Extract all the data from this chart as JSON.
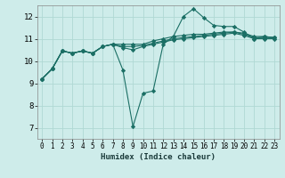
{
  "title": "",
  "xlabel": "Humidex (Indice chaleur)",
  "ylabel": "",
  "bg_color": "#ceecea",
  "grid_color": "#b0d8d4",
  "line_color": "#1a6e64",
  "xlim": [
    -0.5,
    23.5
  ],
  "ylim": [
    6.5,
    12.5
  ],
  "yticks": [
    7,
    8,
    9,
    10,
    11,
    12
  ],
  "xticks": [
    0,
    1,
    2,
    3,
    4,
    5,
    6,
    7,
    8,
    9,
    10,
    11,
    12,
    13,
    14,
    15,
    16,
    17,
    18,
    19,
    20,
    21,
    22,
    23
  ],
  "series": [
    {
      "x": [
        0,
        1,
        2,
        3,
        4,
        5,
        6,
        7,
        8,
        9,
        10,
        11,
        12,
        13,
        14,
        15,
        16,
        17,
        18,
        19,
        20,
        21,
        22,
        23
      ],
      "y": [
        9.2,
        9.65,
        10.45,
        10.35,
        10.45,
        10.35,
        10.65,
        10.75,
        9.6,
        7.05,
        8.55,
        8.65,
        10.75,
        11.1,
        12.0,
        12.35,
        11.95,
        11.6,
        11.55,
        11.55,
        11.3,
        11.0,
        11.1,
        11.05
      ]
    },
    {
      "x": [
        0,
        1,
        2,
        3,
        4,
        5,
        6,
        7,
        8,
        9,
        10,
        11,
        12,
        13,
        14,
        15,
        16,
        17,
        18,
        19,
        20,
        21,
        22,
        23
      ],
      "y": [
        9.2,
        9.65,
        10.45,
        10.35,
        10.45,
        10.35,
        10.65,
        10.75,
        10.75,
        10.75,
        10.75,
        10.9,
        11.0,
        11.1,
        11.15,
        11.2,
        11.2,
        11.25,
        11.3,
        11.3,
        11.25,
        11.1,
        11.1,
        11.05
      ]
    },
    {
      "x": [
        0,
        1,
        2,
        3,
        4,
        5,
        6,
        7,
        8,
        9,
        10,
        11,
        12,
        13,
        14,
        15,
        16,
        17,
        18,
        19,
        20,
        21,
        22,
        23
      ],
      "y": [
        9.2,
        9.65,
        10.45,
        10.35,
        10.45,
        10.35,
        10.65,
        10.75,
        10.65,
        10.65,
        10.7,
        10.8,
        10.9,
        11.0,
        11.05,
        11.1,
        11.15,
        11.2,
        11.25,
        11.3,
        11.2,
        11.05,
        11.05,
        11.05
      ]
    },
    {
      "x": [
        0,
        1,
        2,
        3,
        4,
        5,
        6,
        7,
        8,
        9,
        10,
        11,
        12,
        13,
        14,
        15,
        16,
        17,
        18,
        19,
        20,
        21,
        22,
        23
      ],
      "y": [
        9.2,
        9.65,
        10.45,
        10.35,
        10.45,
        10.35,
        10.65,
        10.75,
        10.6,
        10.5,
        10.65,
        10.75,
        10.85,
        10.95,
        11.0,
        11.05,
        11.1,
        11.15,
        11.2,
        11.25,
        11.15,
        11.0,
        11.0,
        11.0
      ]
    }
  ]
}
